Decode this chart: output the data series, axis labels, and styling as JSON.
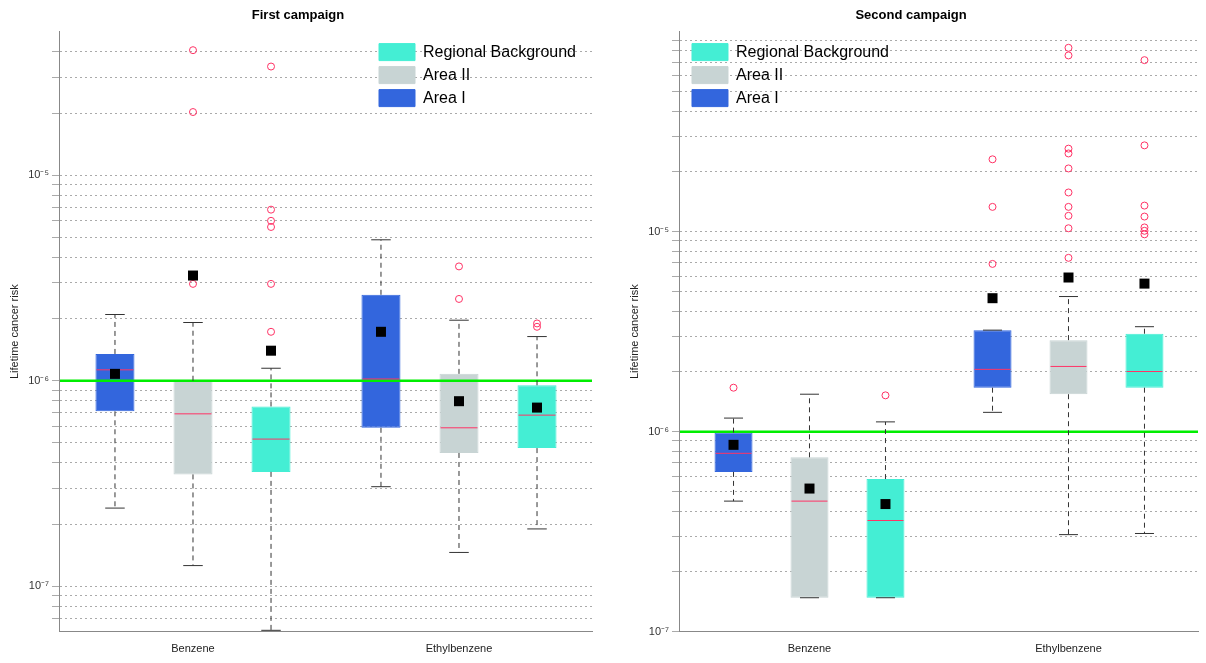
{
  "chart_data": [
    {
      "type": "box",
      "title": "First campaign",
      "ylabel": "Lifetime cancer risk",
      "categories": [
        "Benzene",
        "Ethylbenzene"
      ],
      "log": "y",
      "grid": "y",
      "legend": "top right",
      "ylim": [
        6e-08,
        5e-05
      ],
      "yticks": [
        {
          "value": 7e-08,
          "label": null
        },
        {
          "value": 8e-08,
          "label": null
        },
        {
          "value": 9e-08,
          "label": null
        },
        {
          "value": 1e-07,
          "label": "10⁻⁷"
        },
        {
          "value": 2e-07,
          "label": null
        },
        {
          "value": 3e-07,
          "label": null
        },
        {
          "value": 4e-07,
          "label": null
        },
        {
          "value": 5e-07,
          "label": null
        },
        {
          "value": 6e-07,
          "label": null
        },
        {
          "value": 7e-07,
          "label": null
        },
        {
          "value": 8e-07,
          "label": null
        },
        {
          "value": 9e-07,
          "label": null
        },
        {
          "value": 1e-06,
          "label": "10⁻⁶"
        },
        {
          "value": 2e-06,
          "label": null
        },
        {
          "value": 3e-06,
          "label": null
        },
        {
          "value": 4e-06,
          "label": null
        },
        {
          "value": 5e-06,
          "label": null
        },
        {
          "value": 6e-06,
          "label": null
        },
        {
          "value": 7e-06,
          "label": null
        },
        {
          "value": 8e-06,
          "label": null
        },
        {
          "value": 9e-06,
          "label": null
        },
        {
          "value": 1e-05,
          "label": "10⁻⁵"
        },
        {
          "value": 2e-05,
          "label": null
        },
        {
          "value": 3e-05,
          "label": null
        },
        {
          "value": 4e-05,
          "label": null
        }
      ],
      "ref_lines": [
        {
          "axis": "y",
          "value": 1e-06,
          "color": "#00ee00",
          "line_style": "solid"
        }
      ],
      "series": [
        {
          "name": "Area I",
          "color": "#3366dd",
          "boxes": [
            {
              "low": 2.4e-07,
              "q1": 7.1e-07,
              "median": 1.13e-06,
              "q3": 1.35e-06,
              "high": 2.1e-06,
              "mean": 1.08e-06
            },
            {
              "low": 3.05e-07,
              "q1": 5.9e-07,
              "median": 1.02e-06,
              "q3": 2.62e-06,
              "high": 4.85e-06,
              "mean": 1.73e-06
            }
          ]
        },
        {
          "name": "Area II",
          "color": "#c8d4d4",
          "boxes": [
            {
              "low": 1.26e-07,
              "q1": 3.5e-07,
              "median": 6.9e-07,
              "q3": 1e-06,
              "high": 1.92e-06,
              "mean": 3.25e-06,
              "outliers": [
                4.06e-05,
                2.03e-05,
                2.96e-06
              ]
            },
            {
              "low": 1.46e-07,
              "q1": 4.45e-07,
              "median": 5.9e-07,
              "q3": 1.08e-06,
              "high": 1.97e-06,
              "mean": 7.95e-07,
              "outliers": [
                3.6e-06,
                2.5e-06
              ]
            }
          ]
        },
        {
          "name": "Regional Background",
          "color": "#44eed4",
          "boxes": [
            {
              "low": 6.1e-08,
              "q1": 3.6e-07,
              "median": 5.2e-07,
              "q3": 7.5e-07,
              "high": 1.15e-06,
              "mean": 1.4e-06,
              "outliers": [
                3.38e-05,
                6.8e-06,
                6e-06,
                5.6e-06,
                2.96e-06,
                1.73e-06
              ]
            },
            {
              "low": 1.9e-07,
              "q1": 4.7e-07,
              "median": 6.8e-07,
              "q3": 9.5e-07,
              "high": 1.64e-06,
              "mean": 7.4e-07,
              "outliers": [
                1.9e-06,
                1.83e-06
              ]
            }
          ]
        }
      ]
    },
    {
      "type": "box",
      "title": "Second campaign",
      "ylabel": "Lifetime cancer risk",
      "categories": [
        "Benzene",
        "Ethylbenzene"
      ],
      "log": "y",
      "grid": "y",
      "legend": "top left",
      "ylim": [
        1e-07,
        0.0001
      ],
      "yticks": [
        {
          "value": 1e-07,
          "label": "10⁻⁷"
        },
        {
          "value": 2e-07,
          "label": null
        },
        {
          "value": 3e-07,
          "label": null
        },
        {
          "value": 4e-07,
          "label": null
        },
        {
          "value": 5e-07,
          "label": null
        },
        {
          "value": 6e-07,
          "label": null
        },
        {
          "value": 7e-07,
          "label": null
        },
        {
          "value": 8e-07,
          "label": null
        },
        {
          "value": 9e-07,
          "label": null
        },
        {
          "value": 1e-06,
          "label": "10⁻⁶"
        },
        {
          "value": 2e-06,
          "label": null
        },
        {
          "value": 3e-06,
          "label": null
        },
        {
          "value": 4e-06,
          "label": null
        },
        {
          "value": 5e-06,
          "label": null
        },
        {
          "value": 6e-06,
          "label": null
        },
        {
          "value": 7e-06,
          "label": null
        },
        {
          "value": 8e-06,
          "label": null
        },
        {
          "value": 9e-06,
          "label": null
        },
        {
          "value": 1e-05,
          "label": "10⁻⁵"
        },
        {
          "value": 2e-05,
          "label": null
        },
        {
          "value": 3e-05,
          "label": null
        },
        {
          "value": 4e-05,
          "label": null
        },
        {
          "value": 5e-05,
          "label": null
        },
        {
          "value": 6e-05,
          "label": null
        },
        {
          "value": 7e-05,
          "label": null
        },
        {
          "value": 8e-05,
          "label": null
        },
        {
          "value": 9e-05,
          "label": null
        }
      ],
      "ref_lines": [
        {
          "axis": "y",
          "value": 1e-06,
          "color": "#00ee00",
          "line_style": "solid"
        }
      ],
      "series": [
        {
          "name": "Area I",
          "color": "#3366dd",
          "boxes": [
            {
              "low": 4.5e-07,
              "q1": 6.3e-07,
              "median": 7.8e-07,
              "q3": 9.9e-07,
              "high": 1.17e-06,
              "mean": 8.6e-07,
              "outliers": [
                1.66e-06
              ]
            },
            {
              "low": 1.25e-06,
              "q1": 1.66e-06,
              "median": 2.05e-06,
              "q3": 3.22e-06,
              "high": 3.22e-06,
              "mean": 4.65e-06,
              "outliers": [
                6.9e-06,
                1.33e-05,
                2.3e-05
              ]
            }
          ]
        },
        {
          "name": "Area II",
          "color": "#c8d4d4",
          "boxes": [
            {
              "low": 1.48e-07,
              "q1": 1.48e-07,
              "median": 4.5e-07,
              "q3": 7.45e-07,
              "high": 1.54e-06,
              "mean": 5.2e-07
            },
            {
              "low": 3.06e-07,
              "q1": 1.54e-06,
              "median": 2.12e-06,
              "q3": 2.87e-06,
              "high": 4.74e-06,
              "mean": 5.9e-06,
              "outliers": [
                8.3e-05,
                7.6e-05,
                2.6e-05,
                2.46e-05,
                2.07e-05,
                1.57e-05,
                1.33e-05,
                1.2e-05,
                1.04e-05,
                7.4e-06
              ]
            }
          ]
        },
        {
          "name": "Regional Background",
          "color": "#44eed4",
          "boxes": [
            {
              "low": 1.48e-07,
              "q1": 1.48e-07,
              "median": 3.6e-07,
              "q3": 5.8e-07,
              "high": 1.12e-06,
              "mean": 4.35e-07,
              "outliers": [
                1.52e-06
              ]
            },
            {
              "low": 3.1e-07,
              "q1": 1.66e-06,
              "median": 2e-06,
              "q3": 3.09e-06,
              "high": 3.35e-06,
              "mean": 5.5e-06,
              "outliers": [
                7.2e-05,
                2.7e-05,
                1.35e-05,
                1.19e-05,
                1.05e-05,
                1.01e-05,
                9.7e-06
              ]
            }
          ]
        }
      ]
    }
  ]
}
